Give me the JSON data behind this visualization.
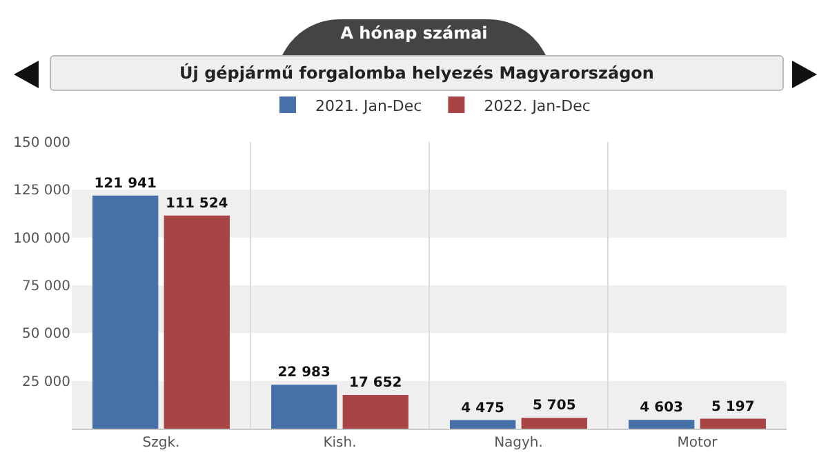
{
  "chart_data": {
    "type": "bar",
    "title": "Új gépjármű forgalomba helyezés Magyarországon",
    "annotations": [
      "A hónap számai"
    ],
    "categories": [
      "Szgk.",
      "Kish.",
      "Nagyh.",
      "Motor"
    ],
    "series": [
      {
        "name": "2021. Jan-Dec",
        "color": "#4571a8",
        "values": [
          121941,
          22983,
          4475,
          4603
        ],
        "value_labels": [
          "121 941",
          "22 983",
          "4 475",
          "4 603"
        ]
      },
      {
        "name": "2022. Jan-Dec",
        "color": "#a94446",
        "values": [
          111524,
          17652,
          5705,
          5197
        ],
        "value_labels": [
          "111 524",
          "17 652",
          "5 705",
          "5 197"
        ]
      }
    ],
    "ylim": [
      0,
      150000
    ],
    "yticks": [
      {
        "value": 0,
        "label": null
      },
      {
        "value": 25000,
        "label": "25 000"
      },
      {
        "value": 50000,
        "label": "50 000"
      },
      {
        "value": 75000,
        "label": "75 000"
      },
      {
        "value": 100000,
        "label": "100 000"
      },
      {
        "value": 125000,
        "label": "125 000"
      },
      {
        "value": 150000,
        "label": "150 000"
      }
    ],
    "grid": true,
    "legend": "top"
  }
}
